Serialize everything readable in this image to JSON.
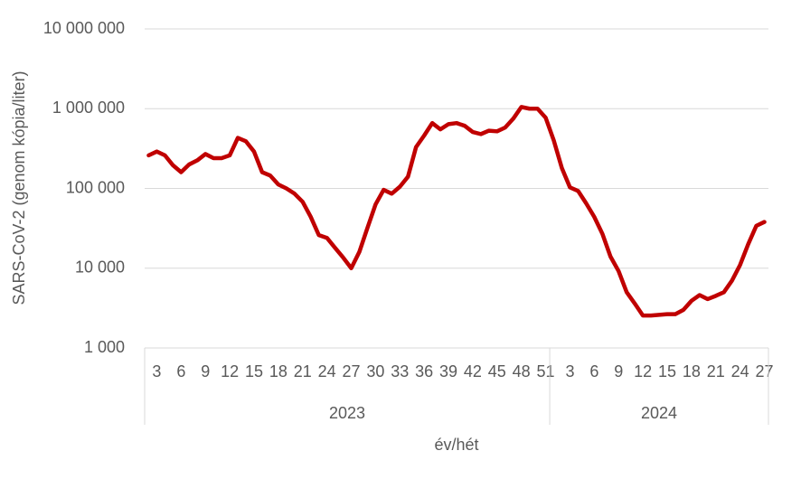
{
  "chart_data": {
    "type": "line",
    "y_label": "SARS-CoV-2 (genom kópia/liter)",
    "x_label": "év/hét",
    "log_scale": true,
    "grid": true,
    "groups": [
      {
        "label": "2023",
        "categories": [
          null,
          "3",
          null,
          null,
          "6",
          null,
          null,
          "9",
          null,
          null,
          "12",
          null,
          null,
          "15",
          null,
          null,
          "18",
          null,
          null,
          "21",
          null,
          null,
          "24",
          null,
          null,
          "27",
          null,
          null,
          "30",
          null,
          null,
          "33",
          null,
          null,
          "36",
          null,
          null,
          "39",
          null,
          null,
          "42",
          null,
          null,
          "45",
          null,
          null,
          "48",
          null,
          null,
          "51"
        ]
      },
      {
        "label": "2024",
        "categories": [
          null,
          null,
          "3",
          null,
          null,
          "6",
          null,
          null,
          "9",
          null,
          null,
          "12",
          null,
          null,
          "15",
          null,
          null,
          "18",
          null,
          null,
          "21",
          null,
          null,
          "24",
          null,
          null,
          "27"
        ]
      }
    ],
    "series": [
      {
        "color": "#c00000",
        "values": [
          260000,
          290000,
          260000,
          195000,
          160000,
          200000,
          225000,
          270000,
          240000,
          240000,
          260000,
          430000,
          390000,
          290000,
          160000,
          145000,
          112000,
          100000,
          86000,
          68000,
          44000,
          26000,
          24000,
          18000,
          13600,
          10000,
          16000,
          32000,
          63000,
          96000,
          86000,
          105000,
          140000,
          330000,
          460000,
          660000,
          550000,
          640000,
          660000,
          610000,
          510000,
          480000,
          530000,
          520000,
          580000,
          750000,
          1050000,
          1000000,
          1000000,
          770000,
          400000,
          180000,
          103000,
          93000,
          65000,
          44000,
          27000,
          14000,
          9200,
          5000,
          3600,
          2550,
          2550,
          2600,
          2650,
          2650,
          3000,
          3900,
          4600,
          4100,
          4500,
          5000,
          7000,
          11000,
          20000,
          34000,
          38000
        ]
      }
    ],
    "ylim": [
      1000,
      10000000
    ],
    "yticks": [
      {
        "value": 1000,
        "label": "1 000"
      },
      {
        "value": 10000,
        "label": "10 000"
      },
      {
        "value": 100000,
        "label": "100 000"
      },
      {
        "value": 1000000,
        "label": "1 000 000"
      },
      {
        "value": 10000000,
        "label": "10 000 000"
      }
    ]
  }
}
